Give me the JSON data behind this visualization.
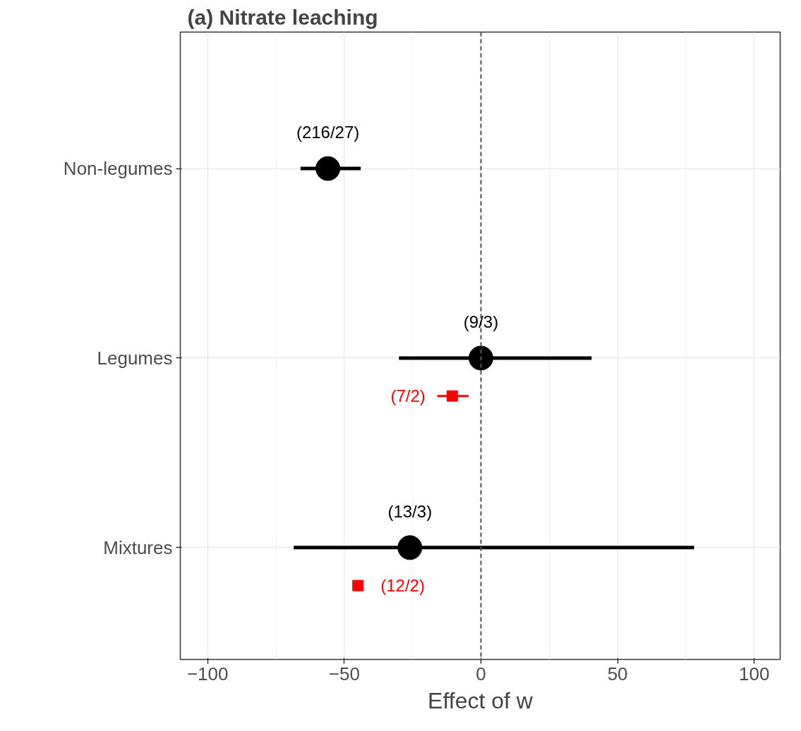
{
  "chart_data": {
    "type": "scatter",
    "orientation": "horizontal",
    "title": "(a) Nitrate leaching",
    "xlabel": "Effect of w",
    "categories": [
      "Non-legumes",
      "Legumes",
      "Mixtures"
    ],
    "series": [
      {
        "color": "#000000",
        "marker": "circle",
        "values": [
          -56,
          0,
          -26
        ],
        "errors": [
          [
            -66,
            -44
          ],
          [
            -30,
            40.5
          ],
          [
            -68.5,
            78
          ]
        ],
        "value_labels": [
          "(216/27)",
          "(9/3)",
          "(13/3)"
        ]
      },
      {
        "color": "#ff0000",
        "marker": "square",
        "values": [
          null,
          -10.5,
          -45
        ],
        "errors": [
          null,
          [
            -16,
            -4.5
          ],
          null
        ],
        "value_labels": [
          null,
          "(7/2)",
          "(12/2)"
        ]
      }
    ],
    "xlim": [
      -110,
      109.5
    ],
    "xticks": [
      -100,
      -50,
      0,
      50,
      100
    ],
    "ref_lines": [
      {
        "axis": "x",
        "value": 0,
        "color": "#555555",
        "line_style": "dashed"
      }
    ],
    "grid": true
  }
}
